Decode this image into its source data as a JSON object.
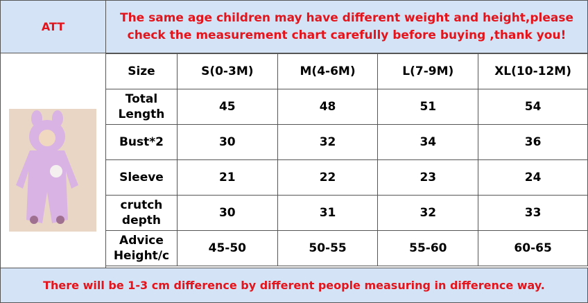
{
  "header": {
    "left": "ATT",
    "notice": [
      "The same age children may have different weight and height,please",
      "check the measurement chart carefully before buying ,thank you!"
    ]
  },
  "table": {
    "columns": [
      "Size",
      "S(0-3M)",
      "M(4-6M)",
      "L(7-9M)",
      "XL(10-12M)"
    ],
    "rows": [
      [
        "Total Length",
        "45",
        "48",
        "51",
        "54"
      ],
      [
        "Bust*2",
        "30",
        "32",
        "34",
        "36"
      ],
      [
        "Sleeve",
        "21",
        "22",
        "23",
        "24"
      ],
      [
        "crutch depth",
        "30",
        "31",
        "32",
        "33"
      ],
      [
        "Advice Height/c",
        "45-50",
        "50-55",
        "55-60",
        "60-65"
      ]
    ]
  },
  "footer": "There will be 1-3 cm difference by different people measuring in difference way."
}
